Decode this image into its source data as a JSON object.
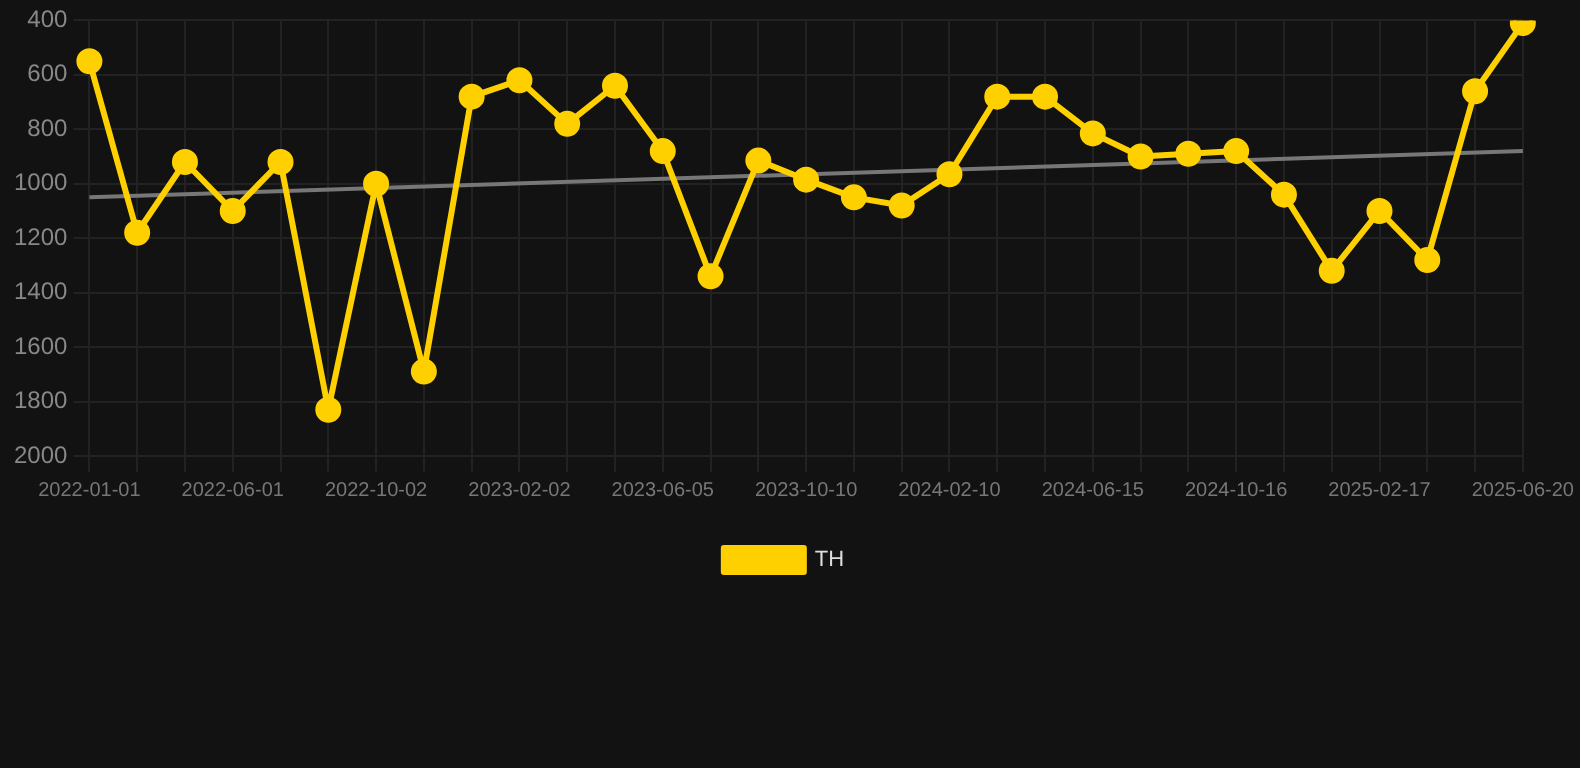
{
  "chart_data": {
    "type": "line",
    "categories": [
      "2022-01-01",
      null,
      null,
      "2022-06-01",
      null,
      null,
      "2022-10-02",
      null,
      null,
      "2023-02-02",
      null,
      null,
      "2023-06-05",
      null,
      null,
      "2023-10-10",
      null,
      null,
      "2024-02-10",
      null,
      null,
      "2024-06-15",
      null,
      null,
      "2024-10-16",
      null,
      null,
      "2025-02-17",
      null,
      null,
      "2025-06-20"
    ],
    "series": [
      {
        "name": "TH",
        "color": "#ffd000",
        "marker": "circle",
        "values": [
          550,
          1180,
          920,
          1100,
          920,
          1830,
          1000,
          1690,
          680,
          620,
          780,
          640,
          880,
          1340,
          915,
          985,
          1050,
          1080,
          965,
          680,
          680,
          815,
          900,
          890,
          880,
          1040,
          1320,
          1100,
          1280,
          660,
          410
        ]
      },
      {
        "color": "#777777",
        "marker": "none",
        "values": [
          1050,
          null,
          null,
          null,
          null,
          null,
          null,
          null,
          null,
          null,
          null,
          null,
          null,
          null,
          null,
          null,
          null,
          null,
          null,
          null,
          null,
          null,
          null,
          null,
          null,
          null,
          null,
          null,
          null,
          null,
          880
        ]
      }
    ],
    "ylim": [
      2000,
      400
    ],
    "yticks": [
      400,
      600,
      800,
      1000,
      1200,
      1400,
      1600,
      1800,
      2000
    ],
    "grid": true,
    "legend": "bottom"
  }
}
